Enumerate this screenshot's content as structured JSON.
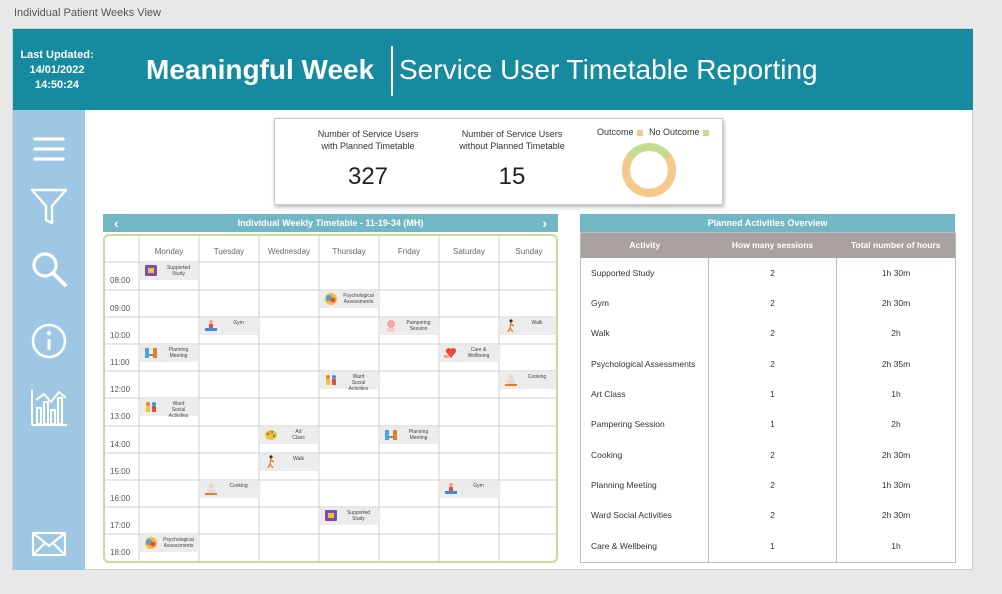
{
  "window": {
    "title": "Individual Patient Weeks View"
  },
  "header": {
    "last_updated_label": "Last Updated:",
    "last_updated_date": "14/01/2022",
    "last_updated_time": "14:50:24",
    "title_bold": "Meaningful Week",
    "title_light": "Service User Timetable Reporting",
    "bg_color": "#168a9e"
  },
  "sidebar": {
    "icons": [
      "menu-icon",
      "filter-icon",
      "search-icon",
      "info-icon",
      "analytics-icon",
      "mail-icon"
    ]
  },
  "kpi": {
    "with_label_1": "Number of Service Users",
    "with_label_2": "with Planned Timetable",
    "with_value": "327",
    "without_label_1": "Number of Service Users",
    "without_label_2": "without Planned Timetable",
    "without_value": "15",
    "legend_outcome": "Outcome",
    "legend_no_outcome": "No Outcome",
    "outcome_color": "#f6c98a",
    "no_outcome_color": "#c5dc8e",
    "outcome_share": 0.7
  },
  "timetable": {
    "title": "Individual Weekly Timetable - 11-19-34 (MH)",
    "prev_arrow": "‹",
    "next_arrow": "›",
    "days": [
      "Monday",
      "Tuesday",
      "Wednesday",
      "Thursday",
      "Friday",
      "Saturday",
      "Sunday"
    ],
    "times": [
      "08:00",
      "09:00",
      "10:00",
      "11:00",
      "12:00",
      "13:00",
      "14:00",
      "15:00",
      "16:00",
      "17:00",
      "18:00"
    ],
    "activities": [
      {
        "day": 0,
        "slot": 0,
        "label_1": "Supported",
        "label_2": "Study",
        "label_3": "",
        "icon": "study-icon"
      },
      {
        "day": 3,
        "slot": 1,
        "label_1": "Psychological",
        "label_2": "Assessments",
        "label_3": "",
        "icon": "psychology-icon"
      },
      {
        "day": 1,
        "slot": 2,
        "label_1": "Gym",
        "label_2": "",
        "label_3": "",
        "icon": "gym-icon"
      },
      {
        "day": 4,
        "slot": 2,
        "label_1": "Pampering",
        "label_2": "Session",
        "label_3": "",
        "icon": "pampering-icon"
      },
      {
        "day": 6,
        "slot": 2,
        "label_1": "Walk",
        "label_2": "",
        "label_3": "",
        "icon": "walk-icon"
      },
      {
        "day": 0,
        "slot": 3,
        "label_1": "Planning",
        "label_2": "Meeting",
        "label_3": "",
        "icon": "meeting-icon"
      },
      {
        "day": 5,
        "slot": 3,
        "label_1": "Care &",
        "label_2": "Wellbeing",
        "label_3": "",
        "icon": "care-icon"
      },
      {
        "day": 3,
        "slot": 4,
        "label_1": "Ward",
        "label_2": "Social",
        "label_3": "Activities",
        "icon": "social-icon"
      },
      {
        "day": 6,
        "slot": 4,
        "label_1": "Cooking",
        "label_2": "",
        "label_3": "",
        "icon": "cooking-icon"
      },
      {
        "day": 0,
        "slot": 5,
        "label_1": "Ward",
        "label_2": "Social",
        "label_3": "Activities",
        "icon": "social-icon"
      },
      {
        "day": 2,
        "slot": 6,
        "label_1": "Art",
        "label_2": "Class",
        "label_3": "",
        "icon": "art-icon"
      },
      {
        "day": 4,
        "slot": 6,
        "label_1": "Planning",
        "label_2": "Meeting",
        "label_3": "",
        "icon": "meeting-icon"
      },
      {
        "day": 2,
        "slot": 7,
        "label_1": "Walk",
        "label_2": "",
        "label_3": "",
        "icon": "walk-icon"
      },
      {
        "day": 1,
        "slot": 8,
        "label_1": "Cooking",
        "label_2": "",
        "label_3": "",
        "icon": "cooking-icon"
      },
      {
        "day": 5,
        "slot": 8,
        "label_1": "Gym",
        "label_2": "",
        "label_3": "",
        "icon": "gym-icon"
      },
      {
        "day": 3,
        "slot": 9,
        "label_1": "Supported",
        "label_2": "Study",
        "label_3": "",
        "icon": "study-icon"
      },
      {
        "day": 0,
        "slot": 10,
        "label_1": "Psychological",
        "label_2": "Assessments",
        "label_3": "",
        "icon": "psychology-icon"
      }
    ]
  },
  "planned": {
    "title": "Planned Activities Overview",
    "headers": [
      "Activity",
      "How many sessions",
      "Total number of hours"
    ],
    "rows": [
      {
        "activity": "Supported Study",
        "sessions": "2",
        "hours": "1h 30m"
      },
      {
        "activity": "Gym",
        "sessions": "2",
        "hours": "2h 30m"
      },
      {
        "activity": "Walk",
        "sessions": "2",
        "hours": "2h"
      },
      {
        "activity": "Psychological Assessments",
        "sessions": "2",
        "hours": "2h 35m"
      },
      {
        "activity": "Art Class",
        "sessions": "1",
        "hours": "1h"
      },
      {
        "activity": "Pampering Session",
        "sessions": "1",
        "hours": "2h"
      },
      {
        "activity": "Cooking",
        "sessions": "2",
        "hours": "2h 30m"
      },
      {
        "activity": "Planning Meeting",
        "sessions": "2",
        "hours": "1h 30m"
      },
      {
        "activity": "Ward Social Activities",
        "sessions": "2",
        "hours": "2h 30m"
      },
      {
        "activity": "Care & Wellbeing",
        "sessions": "1",
        "hours": "1h"
      }
    ]
  }
}
